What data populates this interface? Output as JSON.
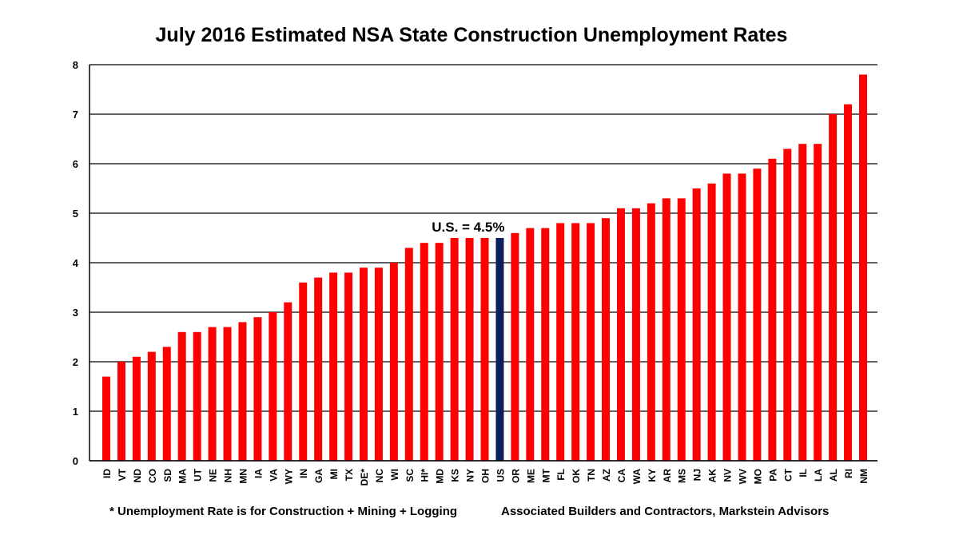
{
  "chart_data": {
    "type": "bar",
    "title": "July 2016 Estimated NSA State Construction Unemployment Rates",
    "xlabel": "",
    "ylabel": "",
    "ylim": [
      0,
      8
    ],
    "yticks": [
      0,
      1,
      2,
      3,
      4,
      5,
      6,
      7,
      8
    ],
    "grid": true,
    "categories": [
      "ID",
      "VT",
      "ND",
      "CO",
      "SD",
      "MA",
      "UT",
      "NE",
      "NH",
      "MN",
      "IA",
      "VA",
      "WY",
      "IN",
      "GA",
      "MI",
      "TX",
      "DE*",
      "NC",
      "WI",
      "SC",
      "HI*",
      "MD",
      "KS",
      "NY",
      "OH",
      "US",
      "OR",
      "ME",
      "MT",
      "FL",
      "OK",
      "TN",
      "AZ",
      "CA",
      "WA",
      "KY",
      "AR",
      "MS",
      "NJ",
      "AK",
      "NV",
      "WV",
      "MO",
      "PA",
      "CT",
      "IL",
      "LA",
      "AL",
      "RI",
      "NM"
    ],
    "values": [
      1.7,
      2.0,
      2.1,
      2.2,
      2.3,
      2.6,
      2.6,
      2.7,
      2.7,
      2.8,
      2.9,
      3.0,
      3.2,
      3.6,
      3.7,
      3.8,
      3.8,
      3.9,
      3.9,
      4.0,
      4.3,
      4.4,
      4.4,
      4.5,
      4.5,
      4.5,
      4.5,
      4.6,
      4.7,
      4.7,
      4.8,
      4.8,
      4.8,
      4.9,
      5.1,
      5.1,
      5.2,
      5.3,
      5.3,
      5.5,
      5.6,
      5.8,
      5.8,
      5.9,
      6.1,
      6.3,
      6.4,
      6.4,
      7.0,
      7.2,
      7.8
    ],
    "highlight_category": "US",
    "annotation": "U.S. = 4.5%",
    "colors": {
      "bar": "#ff0000",
      "highlight": "#0a1f5c",
      "grid": "#000000"
    }
  },
  "footnote": "* Unemployment Rate is for Construction + Mining + Logging",
  "source": "Associated Builders and Contractors, Markstein Advisors"
}
